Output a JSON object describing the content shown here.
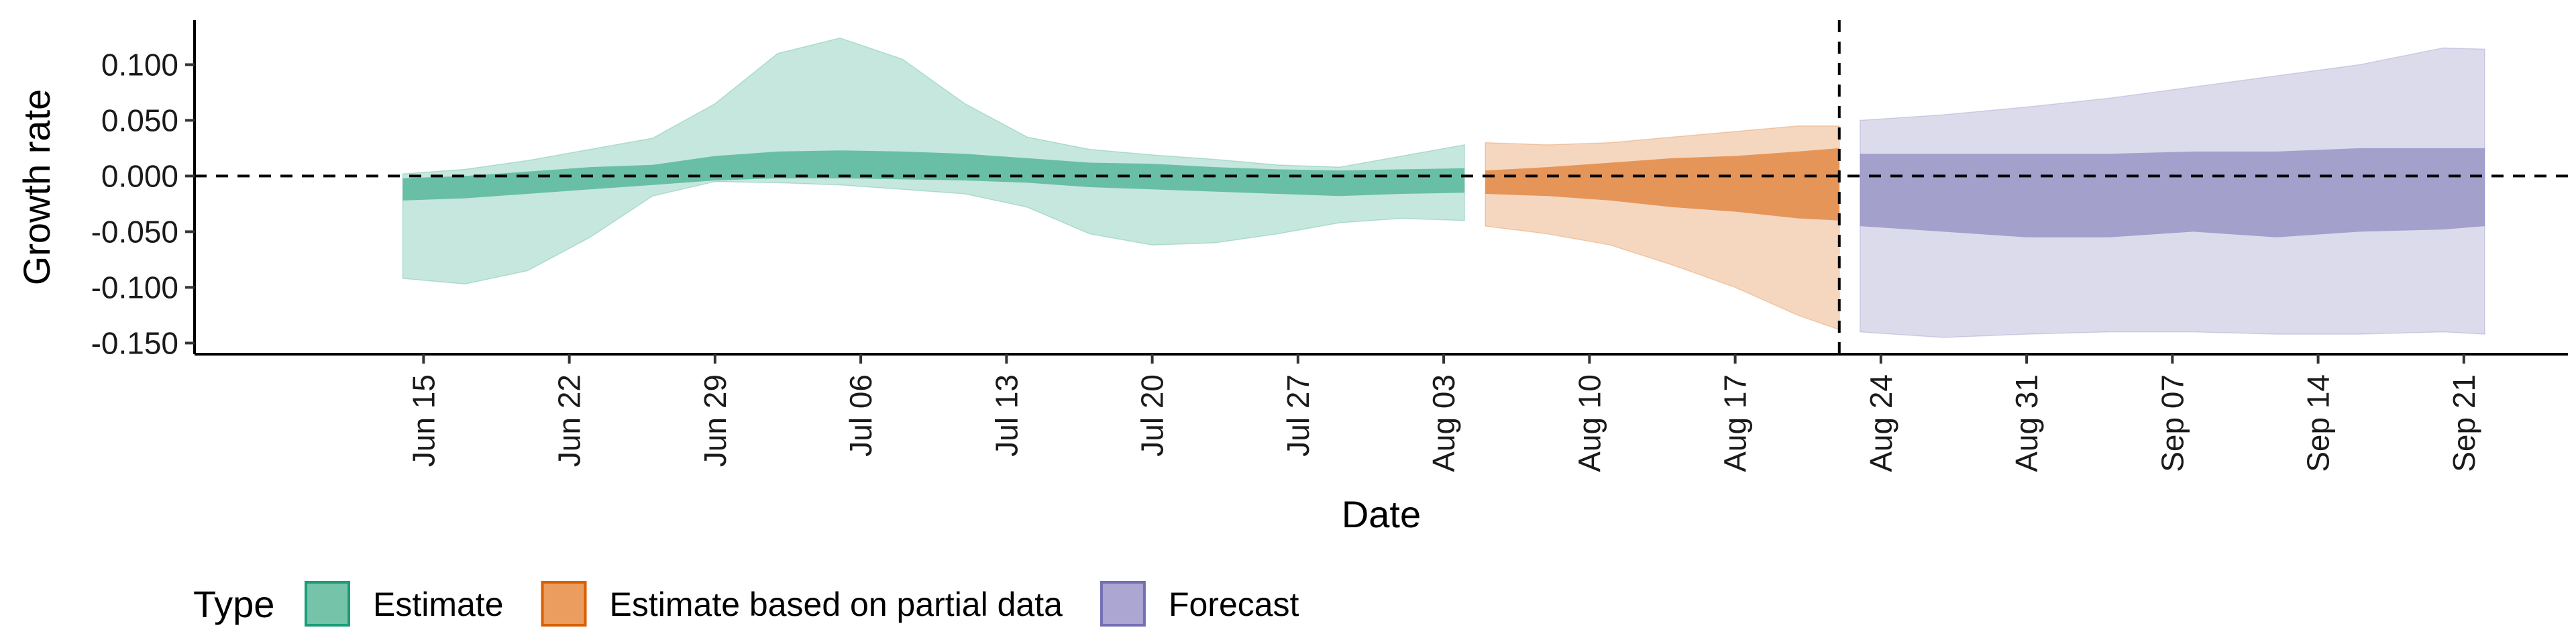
{
  "chart_data": {
    "type": "area",
    "xlabel": "Date",
    "ylabel": "Growth rate",
    "ylim": [
      -0.16,
      0.14
    ],
    "y_ticks": [
      -0.15,
      -0.1,
      -0.05,
      0.0,
      0.05,
      0.1
    ],
    "y_tick_labels": [
      "-0.150",
      "-0.100",
      "-0.050",
      "0.000",
      "0.050",
      "0.100"
    ],
    "x_range": [
      "2020-06-04",
      "2020-09-26"
    ],
    "x_ticks": [
      "2020-06-15",
      "2020-06-22",
      "2020-06-29",
      "2020-07-06",
      "2020-07-13",
      "2020-07-20",
      "2020-07-27",
      "2020-08-03",
      "2020-08-10",
      "2020-08-17",
      "2020-08-24",
      "2020-08-31",
      "2020-09-07",
      "2020-09-14",
      "2020-09-21"
    ],
    "x_tick_labels": [
      "Jun 15",
      "Jun 22",
      "Jun 29",
      "Jul 06",
      "Jul 13",
      "Jul 20",
      "Jul 27",
      "Aug 03",
      "Aug 10",
      "Aug 17",
      "Aug 24",
      "Aug 31",
      "Sep 07",
      "Sep 14",
      "Sep 21"
    ],
    "hline_y": 0.0,
    "vline_x": "2020-08-22",
    "legend": {
      "title": "Type",
      "position": "bottom-left",
      "entries": [
        {
          "label": "Estimate",
          "fill": "#75c4a9",
          "stroke": "#1b9e77"
        },
        {
          "label": "Estimate based on partial data",
          "fill": "#eb9c5f",
          "stroke": "#d95f02"
        },
        {
          "label": "Forecast",
          "fill": "#aba6d2",
          "stroke": "#7570b3"
        }
      ]
    },
    "series": [
      {
        "name": "Estimate",
        "color": "#1b9e77",
        "x": [
          "2020-06-14",
          "2020-06-17",
          "2020-06-20",
          "2020-06-23",
          "2020-06-26",
          "2020-06-29",
          "2020-07-02",
          "2020-07-05",
          "2020-07-08",
          "2020-07-11",
          "2020-07-14",
          "2020-07-17",
          "2020-07-20",
          "2020-07-23",
          "2020-07-26",
          "2020-07-29",
          "2020-08-01",
          "2020-08-04"
        ],
        "outer_upper": [
          0.002,
          0.006,
          0.014,
          0.024,
          0.034,
          0.065,
          0.11,
          0.124,
          0.105,
          0.065,
          0.035,
          0.024,
          0.019,
          0.015,
          0.01,
          0.008,
          0.018,
          0.028
        ],
        "outer_lower": [
          -0.092,
          -0.097,
          -0.085,
          -0.055,
          -0.018,
          -0.005,
          -0.006,
          -0.008,
          -0.012,
          -0.016,
          -0.028,
          -0.052,
          -0.062,
          -0.06,
          -0.052,
          -0.042,
          -0.038,
          -0.04
        ],
        "inner_upper": [
          -0.002,
          0.0,
          0.004,
          0.008,
          0.01,
          0.018,
          0.022,
          0.023,
          0.022,
          0.02,
          0.016,
          0.012,
          0.011,
          0.008,
          0.006,
          0.005,
          0.006,
          0.007
        ],
        "inner_lower": [
          -0.022,
          -0.02,
          -0.016,
          -0.012,
          -0.008,
          -0.004,
          -0.002,
          -0.002,
          -0.003,
          -0.004,
          -0.006,
          -0.01,
          -0.012,
          -0.014,
          -0.016,
          -0.018,
          -0.016,
          -0.015
        ]
      },
      {
        "name": "Estimate based on partial data",
        "color": "#d95f02",
        "x": [
          "2020-08-05",
          "2020-08-08",
          "2020-08-11",
          "2020-08-14",
          "2020-08-17",
          "2020-08-20",
          "2020-08-22"
        ],
        "outer_upper": [
          0.03,
          0.028,
          0.03,
          0.035,
          0.04,
          0.045,
          0.045
        ],
        "outer_lower": [
          -0.045,
          -0.052,
          -0.062,
          -0.08,
          -0.1,
          -0.125,
          -0.138
        ],
        "inner_upper": [
          0.005,
          0.008,
          0.012,
          0.016,
          0.018,
          0.022,
          0.025
        ],
        "inner_lower": [
          -0.016,
          -0.018,
          -0.022,
          -0.028,
          -0.032,
          -0.038,
          -0.04
        ]
      },
      {
        "name": "Forecast",
        "color": "#7570b3",
        "x": [
          "2020-08-23",
          "2020-08-27",
          "2020-08-31",
          "2020-09-04",
          "2020-09-08",
          "2020-09-12",
          "2020-09-16",
          "2020-09-20",
          "2020-09-22"
        ],
        "outer_upper": [
          0.05,
          0.055,
          0.062,
          0.07,
          0.08,
          0.09,
          0.1,
          0.115,
          0.114
        ],
        "outer_lower": [
          -0.14,
          -0.145,
          -0.142,
          -0.14,
          -0.14,
          -0.142,
          -0.142,
          -0.14,
          -0.142
        ],
        "inner_upper": [
          0.02,
          0.02,
          0.02,
          0.02,
          0.022,
          0.022,
          0.025,
          0.025,
          0.025
        ],
        "inner_lower": [
          -0.045,
          -0.05,
          -0.055,
          -0.055,
          -0.05,
          -0.055,
          -0.05,
          -0.048,
          -0.045
        ]
      }
    ]
  }
}
